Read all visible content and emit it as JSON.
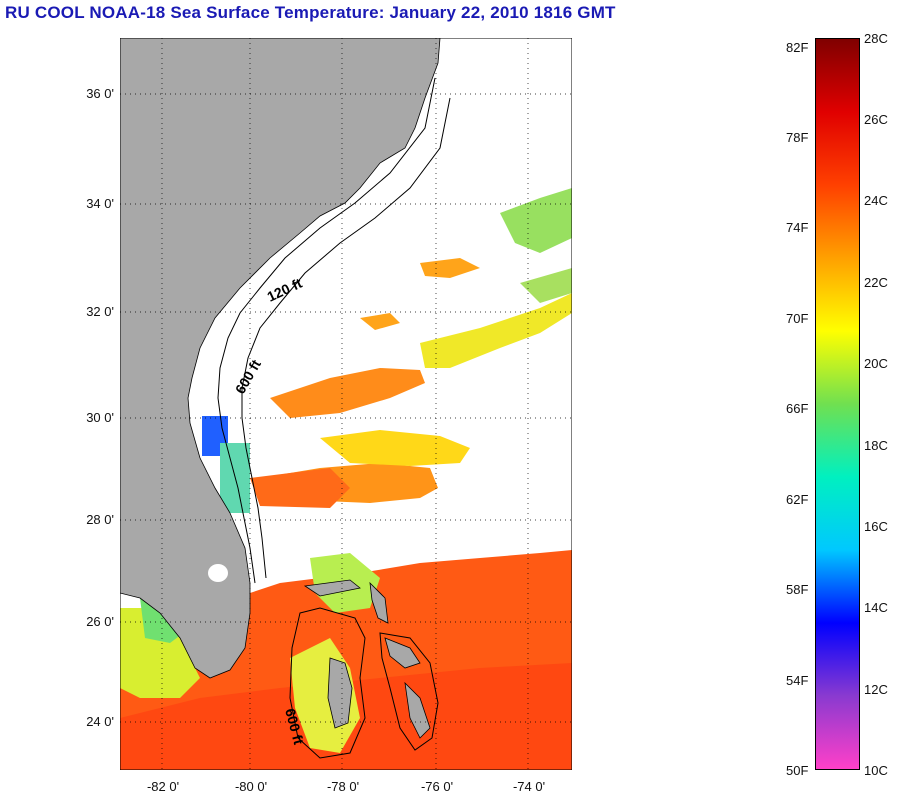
{
  "title": "RU COOL  NOAA-18  Sea Surface Temperature:  January 22, 2010 1816 GMT",
  "map": {
    "lat_labels": [
      "36 0'",
      "34 0'",
      "32 0'",
      "30 0'",
      "28 0'",
      "26 0'",
      "24 0'"
    ],
    "lon_labels": [
      "-82 0'",
      "-80 0'",
      "-78 0'",
      "-76 0'",
      "-74 0'"
    ],
    "contour_labels": [
      "120 ft",
      "600 ft",
      "600 ft"
    ],
    "land_color": "#a8a8a8",
    "missing_data_color": "#ffffff"
  },
  "colorbar": {
    "fahrenheit_labels": [
      "82F",
      "78F",
      "74F",
      "70F",
      "66F",
      "62F",
      "58F",
      "54F",
      "50F"
    ],
    "celsius_labels": [
      "28C",
      "26C",
      "24C",
      "22C",
      "20C",
      "18C",
      "16C",
      "14C",
      "12C",
      "10C"
    ],
    "celsius_range": [
      10,
      28
    ],
    "colors": [
      "#ff40c8",
      "#8a3ad0",
      "#0000ff",
      "#00c8ff",
      "#00f0c0",
      "#70e050",
      "#ffff00",
      "#ffa000",
      "#ff4000",
      "#e00000",
      "#800000"
    ]
  }
}
